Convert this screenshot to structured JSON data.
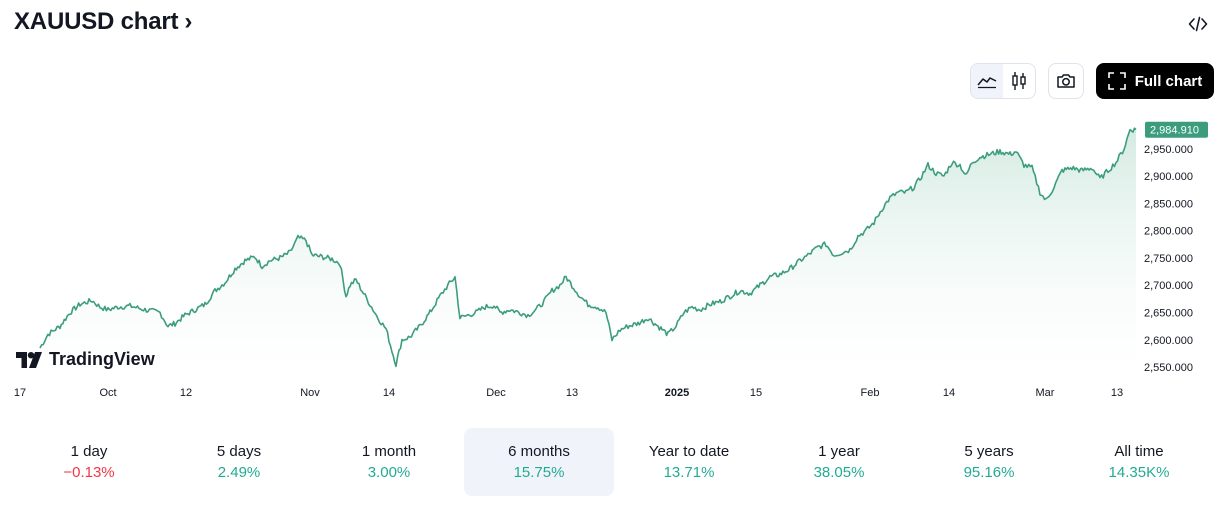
{
  "header": {
    "title": "XAUUSD chart",
    "chevron": "›",
    "embed_icon": "code-icon"
  },
  "toolbar": {
    "chart_style_buttons": [
      {
        "icon": "area-chart-icon",
        "active": true
      },
      {
        "icon": "candlestick-icon",
        "active": false
      }
    ],
    "snapshot_icon": "camera-icon",
    "full_chart_label": "Full chart",
    "full_chart_icon": "fullscreen-icon"
  },
  "watermark": {
    "text": "TradingView"
  },
  "chart_data": {
    "type": "area",
    "series": [
      {
        "name": "",
        "x": [
          "Sep 17",
          "Oct 1",
          "Oct 12",
          "Oct 25",
          "Nov 1",
          "Nov 14",
          "Nov 27",
          "Dec 1",
          "Dec 13",
          "Dec 24",
          "Jan 1",
          "Jan 15",
          "Jan 28",
          "Feb 1",
          "Feb 14",
          "Feb 24",
          "Mar 1",
          "Mar 13",
          "Mar 14"
        ],
        "values": [
          2585,
          2670,
          2620,
          2740,
          2780,
          2555,
          2690,
          2645,
          2660,
          2610,
          2625,
          2680,
          2760,
          2860,
          2920,
          2950,
          2855,
          2950,
          2984.91
        ]
      }
    ],
    "last_value_label": "2,984.910",
    "ylim": [
      2530,
      3010
    ],
    "yticks": [
      "2,550.000",
      "2,600.000",
      "2,650.000",
      "2,700.000",
      "2,750.000",
      "2,800.000",
      "2,850.000",
      "2,900.000",
      "2,950.000"
    ],
    "yticks_values": [
      2550,
      2600,
      2650,
      2700,
      2750,
      2800,
      2850,
      2900,
      2950
    ],
    "xticks": [
      {
        "label": "17",
        "bold": false
      },
      {
        "label": "Oct",
        "bold": false
      },
      {
        "label": "12",
        "bold": false
      },
      {
        "label": "Nov",
        "bold": false
      },
      {
        "label": "14",
        "bold": false
      },
      {
        "label": "Dec",
        "bold": false
      },
      {
        "label": "13",
        "bold": false
      },
      {
        "label": "2025",
        "bold": true
      },
      {
        "label": "15",
        "bold": false
      },
      {
        "label": "Feb",
        "bold": false
      },
      {
        "label": "14",
        "bold": false
      },
      {
        "label": "Mar",
        "bold": false
      },
      {
        "label": "13",
        "bold": false
      }
    ],
    "line_color": "#3c9d7e",
    "area_top_color": "#cfe8de",
    "label_bg_color": "#3c9d7e"
  },
  "periods": [
    {
      "label": "1 day",
      "value": "−0.13%",
      "trend": "neg",
      "active": false
    },
    {
      "label": "5 days",
      "value": "2.49%",
      "trend": "pos",
      "active": false
    },
    {
      "label": "1 month",
      "value": "3.00%",
      "trend": "pos",
      "active": false
    },
    {
      "label": "6 months",
      "value": "15.75%",
      "trend": "pos",
      "active": true
    },
    {
      "label": "Year to date",
      "value": "13.71%",
      "trend": "pos",
      "active": false
    },
    {
      "label": "1 year",
      "value": "38.05%",
      "trend": "pos",
      "active": false
    },
    {
      "label": "5 years",
      "value": "95.16%",
      "trend": "pos",
      "active": false
    },
    {
      "label": "All time",
      "value": "14.35K%",
      "trend": "pos",
      "active": false
    }
  ]
}
